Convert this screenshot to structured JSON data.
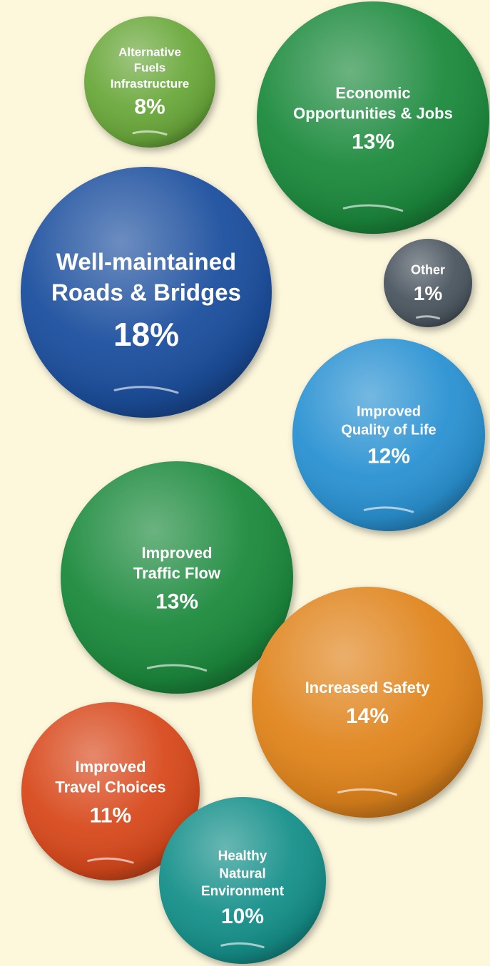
{
  "chart_data": {
    "type": "bubble",
    "categories": [
      [
        "Alternative",
        "Fuels",
        "Infrastructure"
      ],
      [
        "Economic",
        "Opportunities & Jobs"
      ],
      [
        "Well-maintained",
        "Roads & Bridges"
      ],
      [
        "Other"
      ],
      [
        "Improved",
        "Quality of Life"
      ],
      [
        "Improved",
        "Traffic Flow"
      ],
      [
        "Increased Safety"
      ],
      [
        "Improved",
        "Travel Choices"
      ],
      [
        "Healthy",
        "Natural",
        "Environment"
      ]
    ],
    "values": [
      8,
      13,
      18,
      1,
      12,
      13,
      14,
      11,
      10
    ],
    "value_labels": [
      "8%",
      "13%",
      "18%",
      "1%",
      "12%",
      "13%",
      "14%",
      "11%",
      "10%"
    ],
    "colors": [
      "#6aa83a",
      "#1f8a3c",
      "#1f4f9e",
      "#4c5661",
      "#2a92d2",
      "#1f8a3c",
      "#e0841e",
      "#d84a1d",
      "#16908a"
    ]
  }
}
